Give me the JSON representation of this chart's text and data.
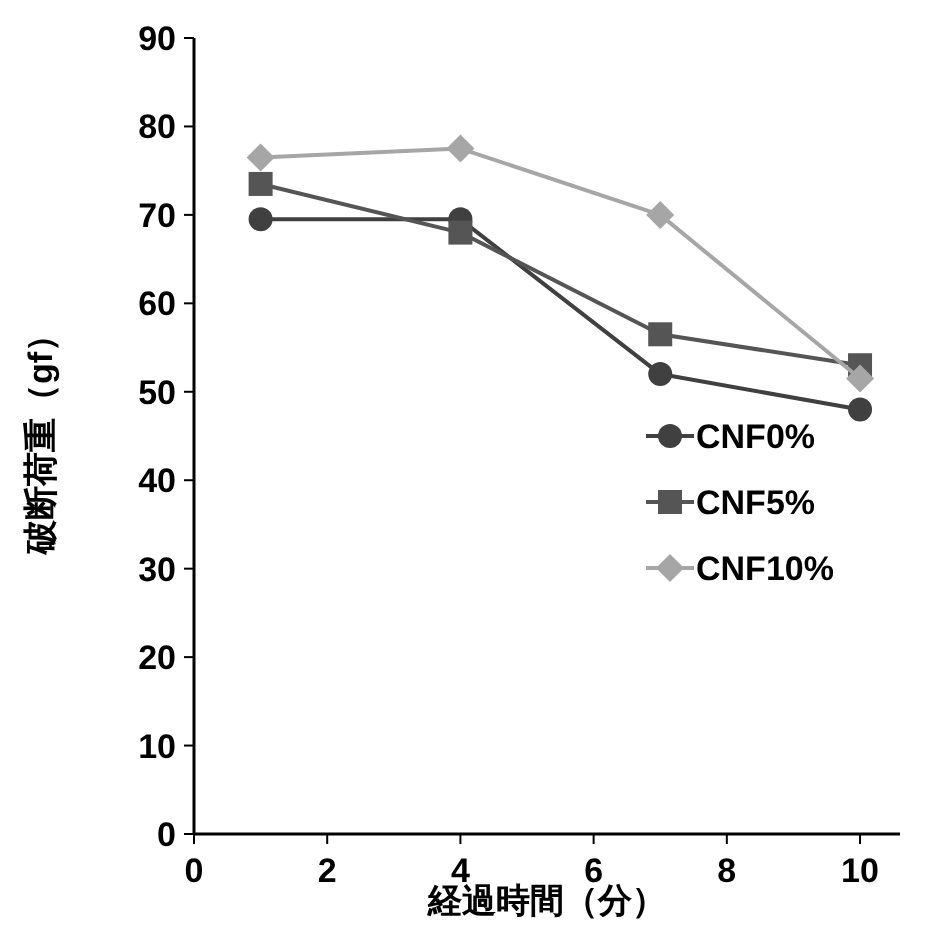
{
  "chart_data": {
    "type": "line",
    "xlabel": "経過時間（分）",
    "ylabel": "破断荷重（gf）",
    "x": [
      1,
      4,
      7,
      10
    ],
    "series": [
      {
        "name": "CNF0%",
        "color": "#404040",
        "marker": "circle",
        "values": [
          69.5,
          69.5,
          52,
          48
        ]
      },
      {
        "name": "CNF5%",
        "color": "#555555",
        "marker": "square",
        "values": [
          73.5,
          68,
          56.5,
          53
        ]
      },
      {
        "name": "CNF10%",
        "color": "#a6a6a6",
        "marker": "diamond",
        "values": [
          76.5,
          77.5,
          70,
          51.5
        ]
      }
    ],
    "xlim": [
      0,
      10.6
    ],
    "xticks": [
      0,
      2,
      4,
      6,
      8,
      10
    ],
    "ylim": [
      0,
      90
    ],
    "yticks": [
      0,
      10,
      20,
      30,
      40,
      50,
      60,
      70,
      80,
      90
    ],
    "grid": false,
    "legend": "right",
    "line_style": "solid"
  }
}
